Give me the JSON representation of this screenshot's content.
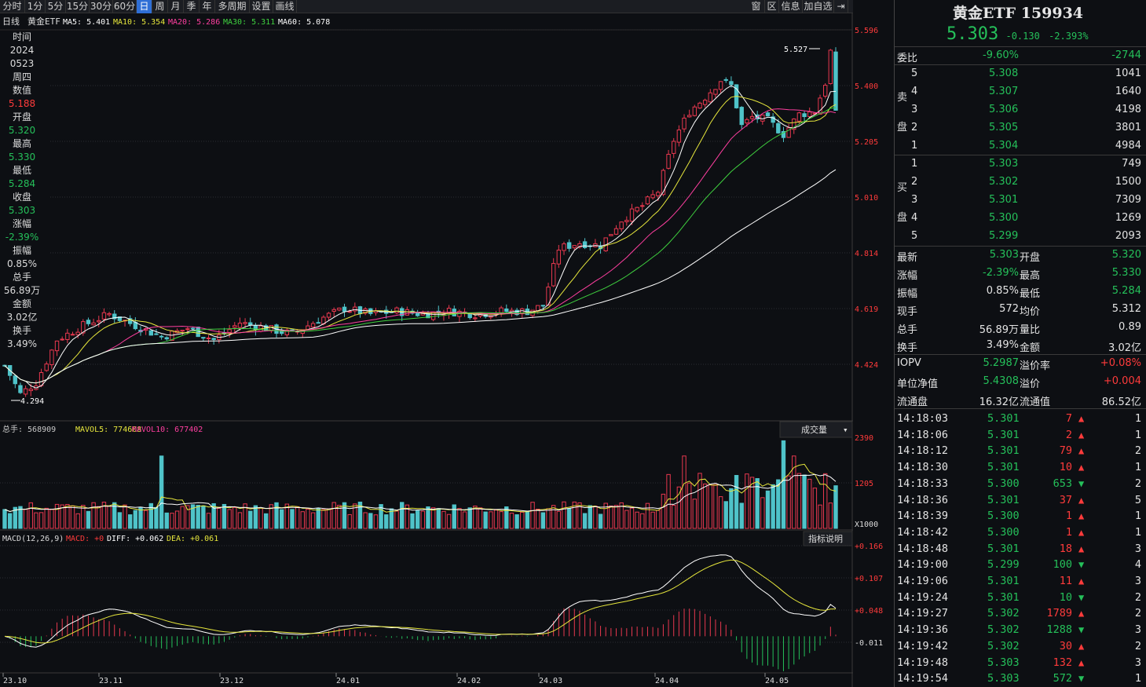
{
  "toolbar": {
    "periods": [
      "分时",
      "1分",
      "5分",
      "15分",
      "30分",
      "60分",
      "日",
      "周",
      "月",
      "季",
      "年",
      "多周期",
      "设置",
      "画线"
    ],
    "active": "日",
    "right": [
      "窗",
      "区",
      "信息",
      "加自选",
      "⇥"
    ]
  },
  "legend": {
    "period": "日线",
    "name": "黄金ETF",
    "ma5": "MA5: 5.401",
    "ma10": "MA10: 5.354",
    "ma20": "MA20: 5.286",
    "ma30": "MA30: 5.311",
    "ma60": "MA60: 5.078"
  },
  "price_axis": [
    "5.596",
    "5.400",
    "5.205",
    "5.010",
    "4.814",
    "4.619",
    "4.424"
  ],
  "max_label": "5.527",
  "min_label": "4.294",
  "vol_legend": {
    "total": "总手: 568909",
    "mavol5": "MAVOL5: 774608",
    "mavol10": "MAVOL10: 677402",
    "dropdown": "成交量"
  },
  "vol_axis": [
    "2390",
    "1205",
    "X1000"
  ],
  "macd_legend": {
    "title": "MACD(12,26,9)",
    "macd": "MACD: +0",
    "diff": "DIFF: +0.062",
    "dea": "DEA: +0.061",
    "button": "指标说明"
  },
  "macd_axis": [
    "+0.166",
    "+0.107",
    "+0.048",
    "-0.011"
  ],
  "date_axis": [
    "23.10",
    "23.11",
    "23.12",
    "24.01",
    "24.02",
    "24.03",
    "24.04",
    "24.05"
  ],
  "info_panel": [
    [
      "时间",
      "w"
    ],
    [
      "2024",
      "w"
    ],
    [
      "0523",
      "w"
    ],
    [
      "周四",
      "w"
    ],
    [
      "数值",
      "w"
    ],
    [
      "5.188",
      "r"
    ],
    [
      "开盘",
      "w"
    ],
    [
      "5.320",
      "g"
    ],
    [
      "最高",
      "w"
    ],
    [
      "5.330",
      "g"
    ],
    [
      "最低",
      "w"
    ],
    [
      "5.284",
      "g"
    ],
    [
      "收盘",
      "w"
    ],
    [
      "5.303",
      "g"
    ],
    [
      "涨幅",
      "w"
    ],
    [
      "-2.39%",
      "g"
    ],
    [
      "振幅",
      "w"
    ],
    [
      "0.85%",
      "w"
    ],
    [
      "总手",
      "w"
    ],
    [
      "56.89万",
      "w"
    ],
    [
      "金额",
      "w"
    ],
    [
      "3.02亿",
      "w"
    ],
    [
      "换手",
      "w"
    ],
    [
      "3.49%",
      "w"
    ]
  ],
  "quote": {
    "title": "黄金ETF 159934",
    "price": "5.303",
    "change": "-0.130",
    "pct": "-2.393%",
    "weibi": {
      "label": "委比",
      "pct": "-9.60%",
      "val": "-2744"
    },
    "sell": [
      [
        "5",
        "5.308",
        "1041"
      ],
      [
        "4",
        "5.307",
        "1640"
      ],
      [
        "3",
        "5.306",
        "4198"
      ],
      [
        "2",
        "5.305",
        "3801"
      ],
      [
        "1",
        "5.304",
        "4984"
      ]
    ],
    "buy": [
      [
        "1",
        "5.303",
        "749"
      ],
      [
        "2",
        "5.302",
        "1500"
      ],
      [
        "3",
        "5.301",
        "7309"
      ],
      [
        "4",
        "5.300",
        "1269"
      ],
      [
        "5",
        "5.299",
        "2093"
      ]
    ],
    "sell_label": [
      "卖",
      "盘"
    ],
    "buy_label": [
      "买",
      "盘"
    ],
    "stats": [
      {
        "l": "最新",
        "v": "5.303",
        "vc": "g",
        "l2": "开盘",
        "v2": "5.320",
        "v2c": "g"
      },
      {
        "l": "涨幅",
        "v": "-2.39%",
        "vc": "g",
        "l2": "最高",
        "v2": "5.330",
        "v2c": "g"
      },
      {
        "l": "振幅",
        "v": "0.85%",
        "vc": "w",
        "l2": "最低",
        "v2": "5.284",
        "v2c": "g"
      },
      {
        "l": "现手",
        "v": "572",
        "vc": "w",
        "l2": "均价",
        "v2": "5.312",
        "v2c": "w"
      },
      {
        "l": "总手",
        "v": "56.89万",
        "vc": "w",
        "l2": "量比",
        "v2": "0.89",
        "v2c": "w"
      },
      {
        "l": "换手",
        "v": "3.49%",
        "vc": "w",
        "l2": "金额",
        "v2": "3.02亿",
        "v2c": "w"
      },
      {
        "l": "IOPV",
        "v": "5.2987",
        "vc": "g",
        "l2": "溢价率",
        "v2": "+0.08%",
        "v2c": "r"
      },
      {
        "l": "单位净值",
        "v": "5.4308",
        "vc": "g",
        "l2": "溢价",
        "v2": "+0.004",
        "v2c": "r"
      },
      {
        "l": "流通盘",
        "v": "16.32亿",
        "vc": "w",
        "l2": "流通值",
        "v2": "86.52亿",
        "v2c": "w"
      }
    ]
  },
  "ticks": [
    [
      "14:18:03",
      "5.301",
      "7",
      "up",
      "1"
    ],
    [
      "14:18:06",
      "5.301",
      "2",
      "up",
      "1"
    ],
    [
      "14:18:12",
      "5.301",
      "79",
      "up",
      "2"
    ],
    [
      "14:18:30",
      "5.301",
      "10",
      "up",
      "1"
    ],
    [
      "14:18:33",
      "5.300",
      "653",
      "down",
      "2"
    ],
    [
      "14:18:36",
      "5.301",
      "37",
      "up",
      "5"
    ],
    [
      "14:18:39",
      "5.300",
      "1",
      "up",
      "1"
    ],
    [
      "14:18:42",
      "5.300",
      "1",
      "up",
      "1"
    ],
    [
      "14:18:48",
      "5.301",
      "18",
      "up",
      "3"
    ],
    [
      "14:19:00",
      "5.299",
      "100",
      "down",
      "4"
    ],
    [
      "14:19:06",
      "5.301",
      "11",
      "up",
      "3"
    ],
    [
      "14:19:24",
      "5.301",
      "10",
      "down",
      "2"
    ],
    [
      "14:19:27",
      "5.302",
      "1789",
      "up",
      "2"
    ],
    [
      "14:19:36",
      "5.302",
      "1288",
      "down",
      "3"
    ],
    [
      "14:19:42",
      "5.302",
      "30",
      "up",
      "2"
    ],
    [
      "14:19:48",
      "5.303",
      "132",
      "up",
      "3"
    ],
    [
      "14:19:54",
      "5.303",
      "572",
      "down",
      "1"
    ]
  ],
  "colors": {
    "up": "#ff3b3b",
    "down": "#25c05a",
    "upbar": "#e8384f",
    "downbar": "#4fc3c9",
    "ma5": "#ffffff",
    "ma10": "#e6e63c",
    "ma20": "#ff3fa0",
    "ma30": "#3fd13f",
    "ma60": "#ffffff"
  }
}
